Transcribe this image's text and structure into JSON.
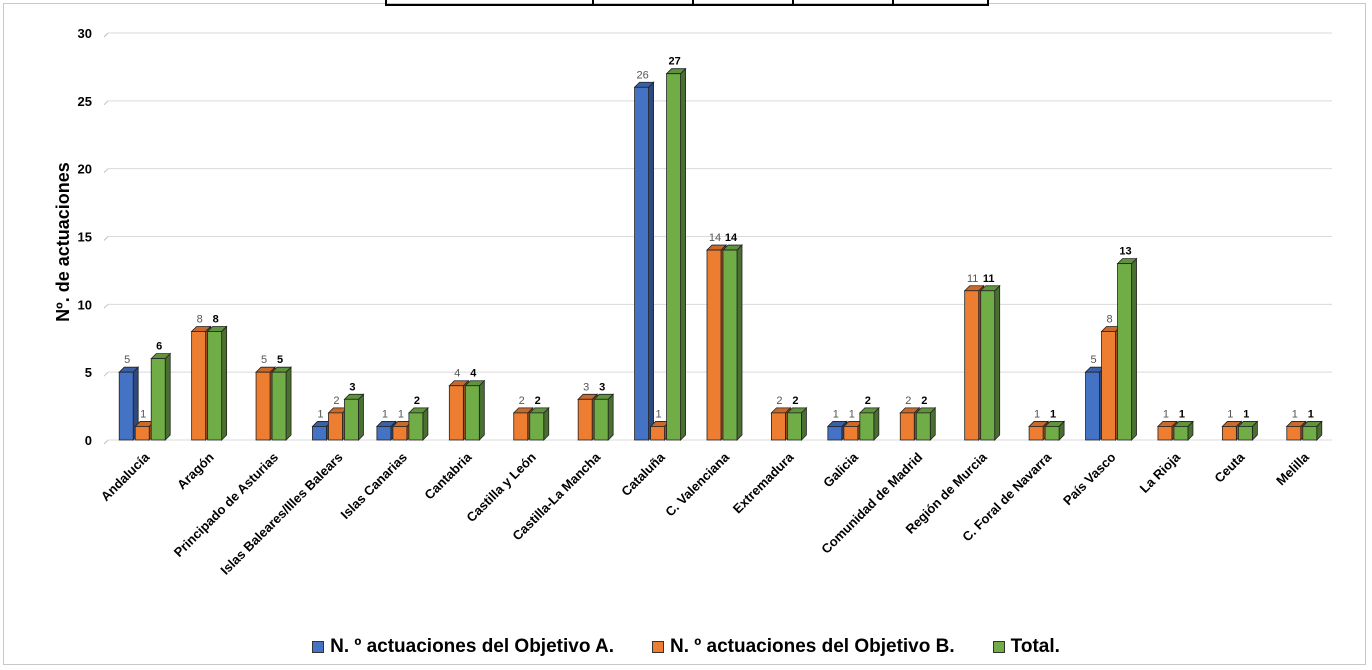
{
  "chart_data": {
    "type": "bar",
    "title": "",
    "ylabel": "Nº. de actuaciones",
    "xlabel": "",
    "ylim": [
      0,
      30
    ],
    "yticks": [
      0,
      5,
      10,
      15,
      20,
      25,
      30
    ],
    "grid": true,
    "legend_position": "bottom",
    "categories": [
      "Andalucía",
      "Aragón",
      "Principado de Asturias",
      "Islas Baleares/Illes Balears",
      "Islas Canarias",
      "Cantabria",
      "Castilla y León",
      "Castilla-La Mancha",
      "Cataluña",
      "C. Valenciana",
      "Extremadura",
      "Galicia",
      "Comunidad de Madrid",
      "Región de Murcia",
      "C. Foral de Navarra",
      "País Vasco",
      "La Rioja",
      "Ceuta",
      "Melilla"
    ],
    "series": [
      {
        "name": "N. º actuaciones del Objetivo A.",
        "color": "#4472c4",
        "values": [
          5,
          null,
          null,
          1,
          1,
          null,
          null,
          null,
          26,
          null,
          null,
          1,
          null,
          null,
          null,
          5,
          null,
          null,
          null
        ]
      },
      {
        "name": "N. º actuaciones del Objetivo B.",
        "color": "#ed7d31",
        "values": [
          1,
          8,
          5,
          2,
          1,
          4,
          2,
          3,
          1,
          14,
          2,
          1,
          2,
          11,
          1,
          8,
          1,
          1,
          1
        ]
      },
      {
        "name": "Total.",
        "color": "#70ad47",
        "values": [
          6,
          8,
          5,
          3,
          2,
          4,
          2,
          3,
          27,
          14,
          2,
          2,
          2,
          11,
          1,
          13,
          1,
          1,
          1
        ]
      }
    ]
  }
}
